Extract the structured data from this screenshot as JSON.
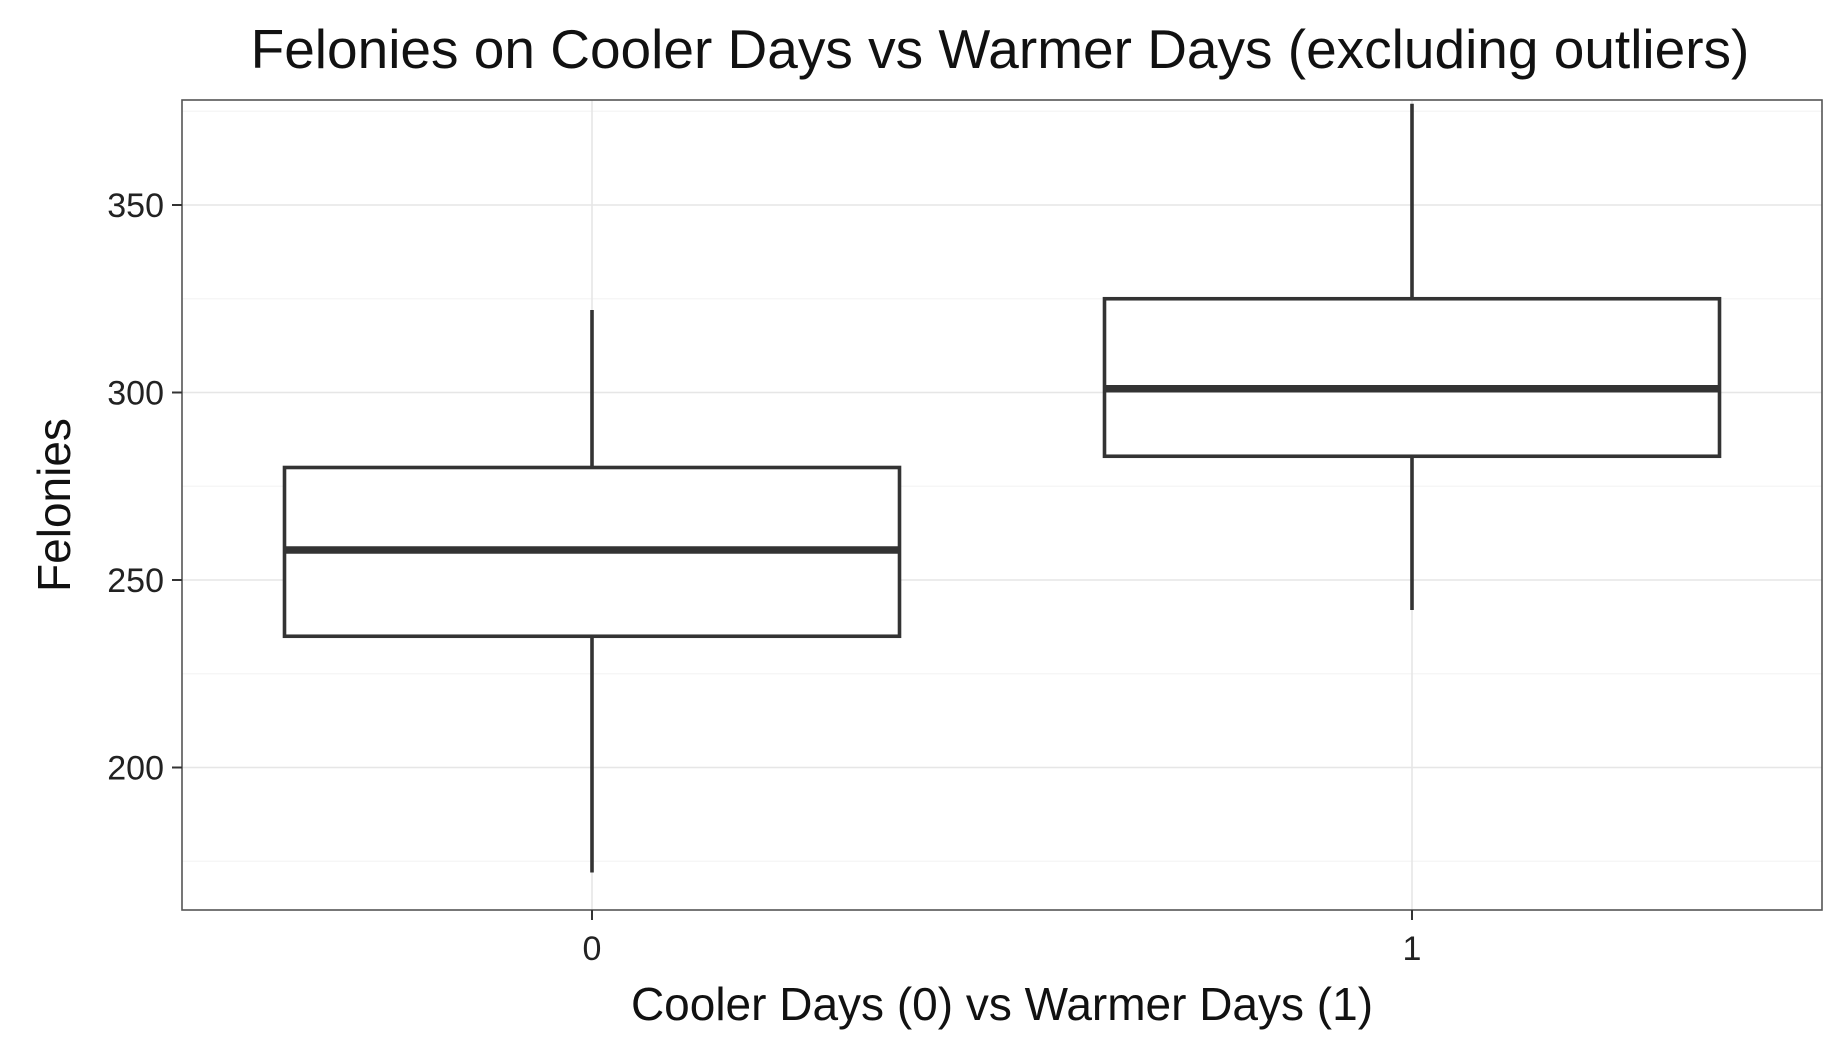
{
  "chart_data": {
    "type": "boxplot",
    "title": "Felonies on Cooler Days vs Warmer Days (excluding outliers)",
    "xlabel": "Cooler Days (0) vs Warmer Days (1)",
    "ylabel": "Felonies",
    "categories": [
      "0",
      "1"
    ],
    "ylim": [
      162,
      378
    ],
    "y_ticks": [
      200,
      250,
      300,
      350
    ],
    "grid": true,
    "boxes": [
      {
        "category": "0",
        "min": 172,
        "q1": 235,
        "median": 258,
        "q3": 280,
        "max": 322
      },
      {
        "category": "1",
        "min": 242,
        "q1": 283,
        "median": 301,
        "q3": 325,
        "max": 377
      }
    ],
    "colors": {
      "box_fill": "#ffffff",
      "box_stroke": "#333333",
      "grid_major": "#e6e6e6",
      "grid_minor": "#f4f4f4",
      "panel_border": "#555555"
    }
  }
}
